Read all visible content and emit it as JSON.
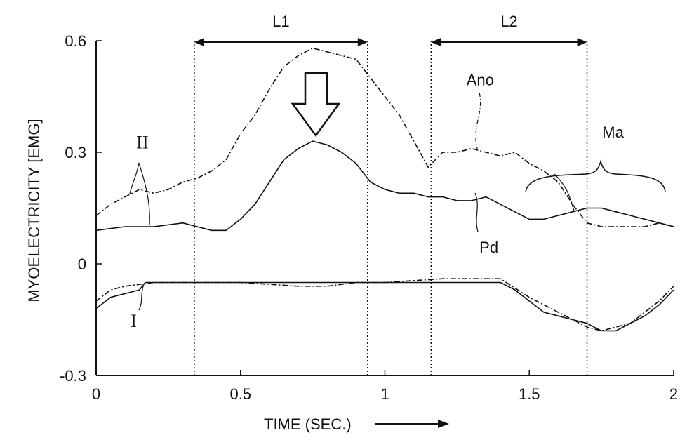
{
  "chart_data": {
    "type": "line",
    "xlabel": "TIME (SEC.)",
    "ylabel": "MYOELECTRICITY [EMG]",
    "xlim": [
      0,
      2
    ],
    "ylim": [
      -0.3,
      0.6
    ],
    "xticks": [
      "0",
      "0.5",
      "1",
      "1.5",
      "2"
    ],
    "yticks": [
      "0.6",
      "0.3",
      "0",
      "-0.3"
    ],
    "xtick_values": [
      0,
      0.5,
      1,
      1.5,
      2
    ],
    "ytick_values": [
      0.6,
      0.3,
      0,
      -0.3
    ],
    "grid": false,
    "series": [
      {
        "name": "Ano",
        "style": "dash-dot",
        "points": [
          [
            0,
            0.13
          ],
          [
            0.05,
            0.16
          ],
          [
            0.1,
            0.18
          ],
          [
            0.15,
            0.2
          ],
          [
            0.2,
            0.19
          ],
          [
            0.25,
            0.2
          ],
          [
            0.3,
            0.22
          ],
          [
            0.35,
            0.23
          ],
          [
            0.4,
            0.25
          ],
          [
            0.45,
            0.28
          ],
          [
            0.5,
            0.35
          ],
          [
            0.55,
            0.4
          ],
          [
            0.6,
            0.47
          ],
          [
            0.65,
            0.53
          ],
          [
            0.7,
            0.56
          ],
          [
            0.75,
            0.58
          ],
          [
            0.8,
            0.57
          ],
          [
            0.85,
            0.56
          ],
          [
            0.9,
            0.55
          ],
          [
            0.95,
            0.5
          ],
          [
            1.0,
            0.45
          ],
          [
            1.05,
            0.4
          ],
          [
            1.1,
            0.33
          ],
          [
            1.15,
            0.26
          ],
          [
            1.2,
            0.3
          ],
          [
            1.25,
            0.3
          ],
          [
            1.3,
            0.31
          ],
          [
            1.35,
            0.3
          ],
          [
            1.4,
            0.29
          ],
          [
            1.45,
            0.3
          ],
          [
            1.5,
            0.27
          ],
          [
            1.55,
            0.25
          ],
          [
            1.6,
            0.22
          ],
          [
            1.65,
            0.16
          ],
          [
            1.7,
            0.11
          ],
          [
            1.75,
            0.1
          ],
          [
            1.8,
            0.1
          ],
          [
            1.85,
            0.1
          ],
          [
            1.9,
            0.1
          ],
          [
            1.95,
            0.11
          ],
          [
            2.0,
            0.1
          ]
        ]
      },
      {
        "name": "Pd",
        "style": "solid",
        "points": [
          [
            0,
            0.09
          ],
          [
            0.1,
            0.1
          ],
          [
            0.2,
            0.1
          ],
          [
            0.3,
            0.11
          ],
          [
            0.35,
            0.1
          ],
          [
            0.4,
            0.09
          ],
          [
            0.45,
            0.09
          ],
          [
            0.5,
            0.12
          ],
          [
            0.55,
            0.16
          ],
          [
            0.6,
            0.22
          ],
          [
            0.65,
            0.28
          ],
          [
            0.7,
            0.31
          ],
          [
            0.75,
            0.33
          ],
          [
            0.8,
            0.32
          ],
          [
            0.85,
            0.3
          ],
          [
            0.9,
            0.27
          ],
          [
            0.95,
            0.22
          ],
          [
            1.0,
            0.2
          ],
          [
            1.05,
            0.19
          ],
          [
            1.1,
            0.19
          ],
          [
            1.15,
            0.18
          ],
          [
            1.2,
            0.18
          ],
          [
            1.25,
            0.17
          ],
          [
            1.3,
            0.17
          ],
          [
            1.35,
            0.18
          ],
          [
            1.4,
            0.16
          ],
          [
            1.45,
            0.14
          ],
          [
            1.5,
            0.12
          ],
          [
            1.55,
            0.12
          ],
          [
            1.6,
            0.13
          ],
          [
            1.65,
            0.14
          ],
          [
            1.7,
            0.15
          ],
          [
            1.75,
            0.15
          ],
          [
            1.8,
            0.14
          ],
          [
            1.85,
            0.13
          ],
          [
            1.9,
            0.12
          ],
          [
            1.95,
            0.11
          ],
          [
            2.0,
            0.1
          ]
        ]
      },
      {
        "name": "",
        "style": "solid",
        "points": [
          [
            0,
            -0.12
          ],
          [
            0.05,
            -0.09
          ],
          [
            0.1,
            -0.08
          ],
          [
            0.15,
            -0.07
          ],
          [
            0.17,
            -0.05
          ],
          [
            0.3,
            -0.05
          ],
          [
            0.5,
            -0.05
          ],
          [
            0.7,
            -0.05
          ],
          [
            0.9,
            -0.05
          ],
          [
            1.0,
            -0.05
          ],
          [
            1.2,
            -0.05
          ],
          [
            1.4,
            -0.05
          ],
          [
            1.45,
            -0.07
          ],
          [
            1.5,
            -0.1
          ],
          [
            1.55,
            -0.13
          ],
          [
            1.6,
            -0.14
          ],
          [
            1.65,
            -0.15
          ],
          [
            1.7,
            -0.16
          ],
          [
            1.75,
            -0.18
          ],
          [
            1.8,
            -0.18
          ],
          [
            1.85,
            -0.16
          ],
          [
            1.9,
            -0.14
          ],
          [
            1.95,
            -0.11
          ],
          [
            2.0,
            -0.07
          ]
        ]
      },
      {
        "name": "",
        "style": "dash-dot",
        "points": [
          [
            0,
            -0.1
          ],
          [
            0.05,
            -0.07
          ],
          [
            0.1,
            -0.06
          ],
          [
            0.2,
            -0.05
          ],
          [
            0.3,
            -0.05
          ],
          [
            0.5,
            -0.05
          ],
          [
            0.7,
            -0.06
          ],
          [
            0.8,
            -0.06
          ],
          [
            0.9,
            -0.05
          ],
          [
            1.0,
            -0.05
          ],
          [
            1.2,
            -0.04
          ],
          [
            1.4,
            -0.04
          ],
          [
            1.5,
            -0.09
          ],
          [
            1.55,
            -0.11
          ],
          [
            1.6,
            -0.13
          ],
          [
            1.65,
            -0.15
          ],
          [
            1.7,
            -0.17
          ],
          [
            1.75,
            -0.18
          ],
          [
            1.8,
            -0.17
          ],
          [
            1.85,
            -0.16
          ],
          [
            1.9,
            -0.13
          ],
          [
            1.95,
            -0.1
          ],
          [
            2.0,
            -0.06
          ]
        ]
      }
    ],
    "intervals": [
      {
        "label": "L1",
        "from": 0.34,
        "to": 0.94
      },
      {
        "label": "L2",
        "from": 1.16,
        "to": 1.7
      }
    ],
    "annotations": [
      {
        "text": "Ano",
        "x": 1.33,
        "y": 0.48
      },
      {
        "text": "Pd",
        "x": 1.36,
        "y": 0.03
      },
      {
        "text": "Ma",
        "x": 1.79,
        "y": 0.34
      },
      {
        "text": "II",
        "x": 0.16,
        "y": 0.31
      },
      {
        "text": "I",
        "x": 0.13,
        "y": -0.17
      }
    ],
    "marker": {
      "type": "down-arrow",
      "x": 0.76
    }
  }
}
